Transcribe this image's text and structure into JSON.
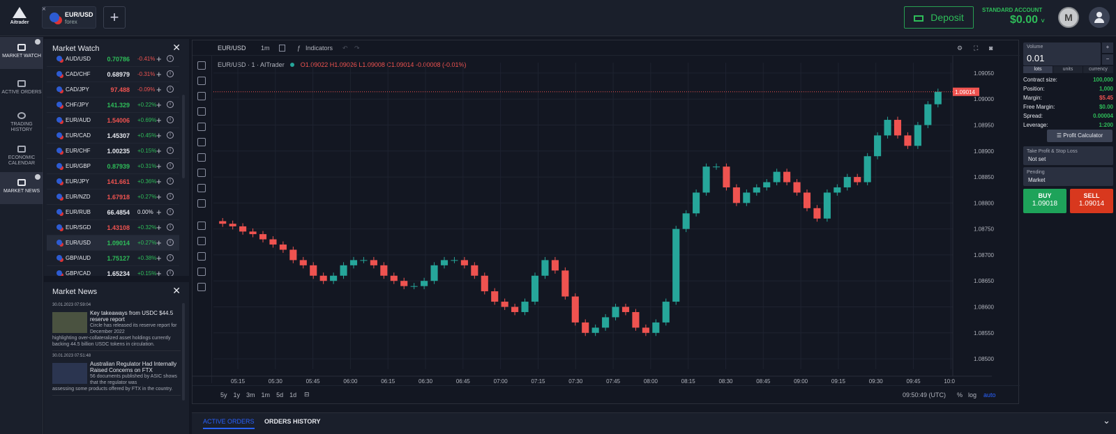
{
  "app": {
    "logo_text": "Aitrader"
  },
  "symbol_tab": {
    "name": "EUR/USD",
    "type": "forex",
    "close": "×"
  },
  "add_tab": "+",
  "deposit": {
    "label": "Deposit"
  },
  "account": {
    "label": "STANDARD ACCOUNT",
    "balance": "$0.00",
    "caret": "˅"
  },
  "medal": "M",
  "nav": [
    {
      "label": "MARKET WATCH",
      "active": true
    },
    {
      "label": "ACTIVE ORDERS"
    },
    {
      "label": "TRADING HISTORY"
    },
    {
      "label": "ECONOMIC CALENDAR"
    },
    {
      "label": "MARKET NEWS",
      "active": true
    }
  ],
  "market_watch": {
    "title": "Market Watch",
    "close": "✕",
    "rows": [
      {
        "sym": "AUD/USD",
        "px": "0.70786",
        "ch": "-0.41%",
        "dir": "dn",
        "pxdir": "up"
      },
      {
        "sym": "CAD/CHF",
        "px": "0.68979",
        "ch": "-0.31%",
        "dir": "dn",
        "pxdir": "neu"
      },
      {
        "sym": "CAD/JPY",
        "px": "97.488",
        "ch": "-0.09%",
        "dir": "dn",
        "pxdir": "dn"
      },
      {
        "sym": "CHF/JPY",
        "px": "141.329",
        "ch": "+0.22%",
        "dir": "up",
        "pxdir": "up"
      },
      {
        "sym": "EUR/AUD",
        "px": "1.54006",
        "ch": "+0.69%",
        "dir": "up",
        "pxdir": "dn"
      },
      {
        "sym": "EUR/CAD",
        "px": "1.45307",
        "ch": "+0.45%",
        "dir": "up",
        "pxdir": "neu"
      },
      {
        "sym": "EUR/CHF",
        "px": "1.00235",
        "ch": "+0.15%",
        "dir": "up",
        "pxdir": "neu"
      },
      {
        "sym": "EUR/GBP",
        "px": "0.87939",
        "ch": "+0.31%",
        "dir": "up",
        "pxdir": "up"
      },
      {
        "sym": "EUR/JPY",
        "px": "141.661",
        "ch": "+0.36%",
        "dir": "up",
        "pxdir": "dn"
      },
      {
        "sym": "EUR/NZD",
        "px": "1.67918",
        "ch": "+0.27%",
        "dir": "up",
        "pxdir": "dn"
      },
      {
        "sym": "EUR/RUB",
        "px": "66.4854",
        "ch": "0.00%",
        "dir": "neu",
        "pxdir": "neu"
      },
      {
        "sym": "EUR/SGD",
        "px": "1.43108",
        "ch": "+0.32%",
        "dir": "up",
        "pxdir": "dn"
      },
      {
        "sym": "EUR/USD",
        "px": "1.09014",
        "ch": "+0.27%",
        "dir": "up",
        "pxdir": "up",
        "sel": true
      },
      {
        "sym": "GBP/AUD",
        "px": "1.75127",
        "ch": "+0.38%",
        "dir": "up",
        "pxdir": "up"
      },
      {
        "sym": "GBP/CAD",
        "px": "1.65234",
        "ch": "+0.15%",
        "dir": "up",
        "pxdir": "neu"
      }
    ]
  },
  "market_news": {
    "title": "Market News",
    "close": "✕",
    "items": [
      {
        "date": "30.01.2023 07:59:04",
        "title": "Key takeaways from USDC $44.5 reserve report",
        "body": "Circle has released its reserve report for December 2022",
        "body2": "highlighting over-collateralized asset holdings currently backing 44.5 billion USDC tokens in circulation."
      },
      {
        "date": "30.01.2023 07:51:48",
        "title": "Australian Regulator Had Internally Raised Concerns on FTX",
        "body": "56 documents published by ASIC shows that the regulator was",
        "body2": "assessing some products offered by FTX in the country."
      }
    ]
  },
  "chart_toolbar": {
    "symbol": "EUR/USD",
    "interval": "1m",
    "indicators": "Indicators"
  },
  "legend": {
    "title": "EUR/USD · 1 · AITrader",
    "o": "O1.09022",
    "h": "H1.09026",
    "l": "L1.09008",
    "c": "C1.09014",
    "chg": "-0.00008 (-0.01%)"
  },
  "price_tag": "1.09014",
  "chart_data": {
    "type": "candlestick",
    "y_ticks": [
      "1.09050",
      "1.09000",
      "1.08950",
      "1.08900",
      "1.08850",
      "1.08800",
      "1.08750",
      "1.08700",
      "1.08650",
      "1.08600",
      "1.08550",
      "1.08500"
    ],
    "ylim": [
      1.0848,
      1.0907
    ],
    "x_ticks": [
      "05:15",
      "05:30",
      "05:45",
      "06:00",
      "06:15",
      "06:30",
      "06:45",
      "07:00",
      "07:15",
      "07:30",
      "07:45",
      "08:00",
      "08:15",
      "08:30",
      "08:45",
      "09:00",
      "09:15",
      "09:30",
      "09:45",
      "10:0"
    ],
    "closes": [
      1.0876,
      1.08755,
      1.08745,
      1.0874,
      1.0873,
      1.0872,
      1.0871,
      1.0869,
      1.0868,
      1.0866,
      1.0865,
      1.0866,
      1.0868,
      1.0869,
      1.0869,
      1.0868,
      1.0866,
      1.0865,
      1.0864,
      1.0864,
      1.0865,
      1.0868,
      1.0869,
      1.0869,
      1.0868,
      1.0866,
      1.0863,
      1.0861,
      1.086,
      1.0859,
      1.0861,
      1.0866,
      1.0869,
      1.0867,
      1.0862,
      1.0857,
      1.0855,
      1.0856,
      1.0858,
      1.086,
      1.0859,
      1.0856,
      1.0855,
      1.0857,
      1.0861,
      1.0875,
      1.0878,
      1.0882,
      1.0887,
      1.0887,
      1.0883,
      1.088,
      1.0882,
      1.0883,
      1.0884,
      1.0886,
      1.0884,
      1.0882,
      1.0879,
      1.0877,
      1.0882,
      1.0883,
      1.0885,
      1.0884,
      1.0889,
      1.0893,
      1.0896,
      1.0893,
      1.0891,
      1.0895,
      1.0899,
      1.09014
    ]
  },
  "time_ranges": [
    "5y",
    "1y",
    "3m",
    "1m",
    "5d",
    "1d"
  ],
  "clock": "09:50:49 (UTC)",
  "scale_opts": [
    "%",
    "log",
    "auto"
  ],
  "bottom_tabs": [
    "ACTIVE ORDERS",
    "ORDERS HISTORY"
  ],
  "right": {
    "volume_label": "Volume",
    "volume": "0.01",
    "plus": "+",
    "minus": "−",
    "units": [
      "lots",
      "units",
      "currency"
    ],
    "stats": [
      {
        "k": "Contract size:",
        "v": "100,000"
      },
      {
        "k": "Position:",
        "v": "1,000"
      },
      {
        "k": "Margin:",
        "v": "$5.45",
        "dn": true
      },
      {
        "k": "Free Margin:",
        "v": "$0.00"
      },
      {
        "k": "Spread:",
        "v": "0.00004"
      },
      {
        "k": "Leverage:",
        "v": "1:200"
      }
    ],
    "profit_calc": "Profit Calculator",
    "tpsl_label": "Take Profit & Stop Loss",
    "tpsl_value": "Not set",
    "pending_label": "Pending",
    "pending_value": "Market",
    "buy_label": "BUY",
    "buy_price": "1.09018",
    "sell_label": "SELL",
    "sell_price": "1.09014"
  }
}
